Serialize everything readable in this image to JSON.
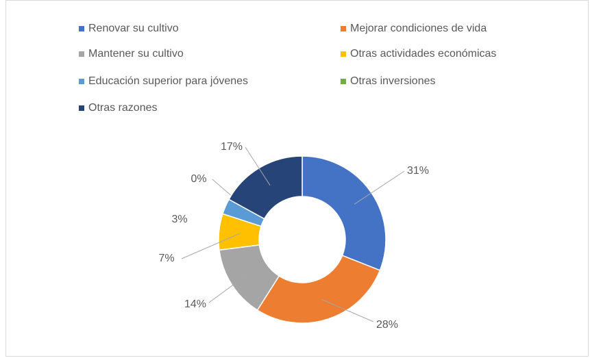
{
  "chart_data": {
    "type": "donut",
    "categories": [
      "Renovar su cultivo",
      "Mejorar condiciones de vida",
      "Mantener su cultivo",
      "Otras actividades económicas",
      "Educación superior para jóvenes",
      "Otras inversiones",
      "Otras razones"
    ],
    "values": [
      31,
      28,
      14,
      7,
      3,
      0,
      17
    ],
    "value_labels": [
      "31%",
      "28%",
      "14%",
      "7%",
      "3%",
      "0%",
      "17%"
    ],
    "colors": [
      "#4472c4",
      "#ed7d31",
      "#a5a5a5",
      "#ffc000",
      "#5b9bd5",
      "#70ad47",
      "#264478"
    ],
    "legend": "top"
  }
}
